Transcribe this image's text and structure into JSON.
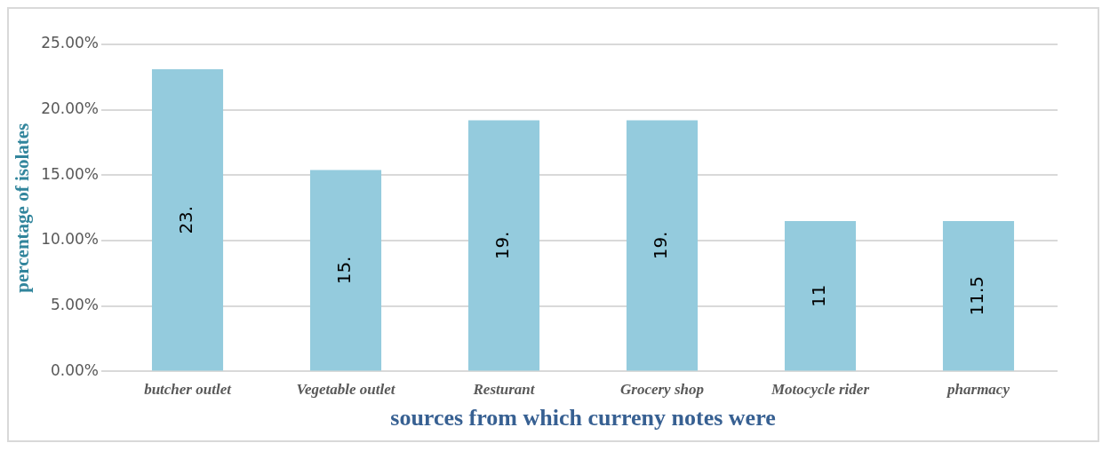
{
  "chart_data": {
    "type": "bar",
    "xlabel": "sources from which curreny notes were",
    "ylabel": "percentage of isolates",
    "categories": [
      "butcher outlet",
      "Vegetable outlet",
      "Resturant",
      "Grocery shop",
      "Motocycle rider",
      "pharmacy"
    ],
    "values": [
      23.1,
      15.4,
      19.2,
      19.2,
      11.5,
      11.5
    ],
    "value_labels": [
      "23.",
      "15.",
      "19.",
      "19.",
      "11",
      "11.5"
    ],
    "color": "#94cbdd",
    "ylim": [
      0,
      25
    ],
    "yticks": [
      {
        "value": 0,
        "label": "0.00%"
      },
      {
        "value": 5,
        "label": "5.00%"
      },
      {
        "value": 10,
        "label": "10.00%"
      },
      {
        "value": 15,
        "label": "15.00%"
      },
      {
        "value": 20,
        "label": "20.00%"
      },
      {
        "value": 25,
        "label": "25.00%"
      }
    ],
    "grid": "y",
    "legend": false
  }
}
